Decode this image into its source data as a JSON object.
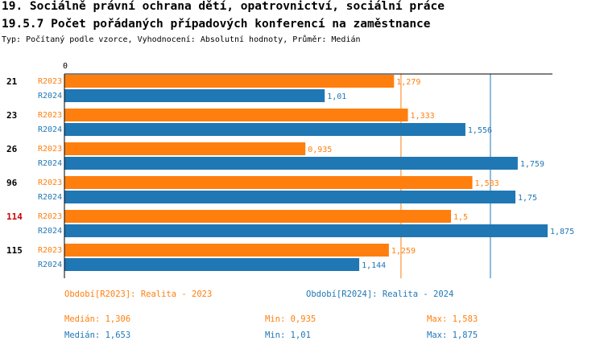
{
  "header": {
    "title_line1": "19. Sociálně právní ochrana dětí, opatrovnictví, sociální práce",
    "title_line2": "19.5.7 Počet pořádaných případových konferencí na zaměstnance",
    "subtitle": "Typ: Počítaný podle vzorce, Vyhodnocení: Absolutní hodnoty, Průměr: Medián"
  },
  "colors": {
    "r2023": "#ff7f0e",
    "r2024": "#1f77b4",
    "highlight": "#cc0000"
  },
  "chart_data": {
    "type": "bar",
    "orientation": "horizontal",
    "x_axis_label": "0",
    "xlim": [
      0,
      1.9
    ],
    "categories": [
      "21",
      "23",
      "26",
      "96",
      "114",
      "115"
    ],
    "highlighted_category": "114",
    "series": [
      {
        "name": "R2023",
        "values": [
          1.279,
          1.333,
          0.935,
          1.583,
          1.5,
          1.259
        ],
        "labels": [
          "1,279",
          "1,333",
          "0,935",
          "1,583",
          "1,5",
          "1,259"
        ]
      },
      {
        "name": "R2024",
        "values": [
          1.01,
          1.556,
          1.759,
          1.75,
          1.875,
          1.144
        ],
        "labels": [
          "1,01",
          "1,556",
          "1,759",
          "1,75",
          "1,875",
          "1,144"
        ]
      }
    ],
    "median_lines": [
      {
        "series": "R2023",
        "value": 1.306
      },
      {
        "series": "R2024",
        "value": 1.653
      }
    ]
  },
  "legend": {
    "r2023": "Období[R2023]: Realita - 2023",
    "r2024": "Období[R2024]: Realita - 2024"
  },
  "stats": {
    "r2023": {
      "median": "Medián: 1,306",
      "min": "Min: 0,935",
      "max": "Max: 1,583"
    },
    "r2024": {
      "median": "Medián: 1,653",
      "min": "Min: 1,01",
      "max": "Max: 1,875"
    }
  }
}
